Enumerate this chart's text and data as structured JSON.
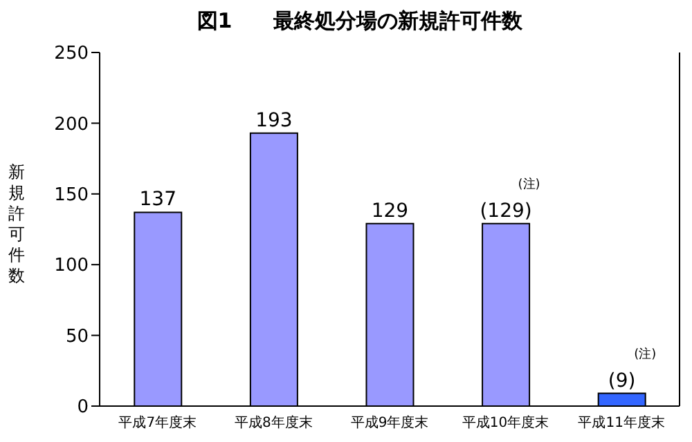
{
  "chart_data": {
    "type": "bar",
    "title": "図1　　最終処分場の新規許可件数",
    "ylabel": "新規許可件数",
    "categories": [
      "平成7年度末",
      "平成8年度末",
      "平成9年度末",
      "平成10年度末",
      "平成11年度末"
    ],
    "values": [
      137,
      193,
      129,
      129,
      9
    ],
    "colors": [
      "#9999ff",
      "#9999ff",
      "#9999ff",
      "#9999ff",
      "#3366ff"
    ],
    "value_labels": [
      "137",
      "193",
      "129",
      "(129)",
      "(9)"
    ],
    "annotations": [
      {
        "text": "(注)",
        "x": "平成10年度末",
        "y": 129
      },
      {
        "text": "(注)",
        "x": "平成11年度末",
        "y": 9
      }
    ],
    "ylim": [
      0,
      250
    ],
    "yticks": [
      0,
      50,
      100,
      150,
      200,
      250
    ],
    "grid": false,
    "legend": false
  }
}
